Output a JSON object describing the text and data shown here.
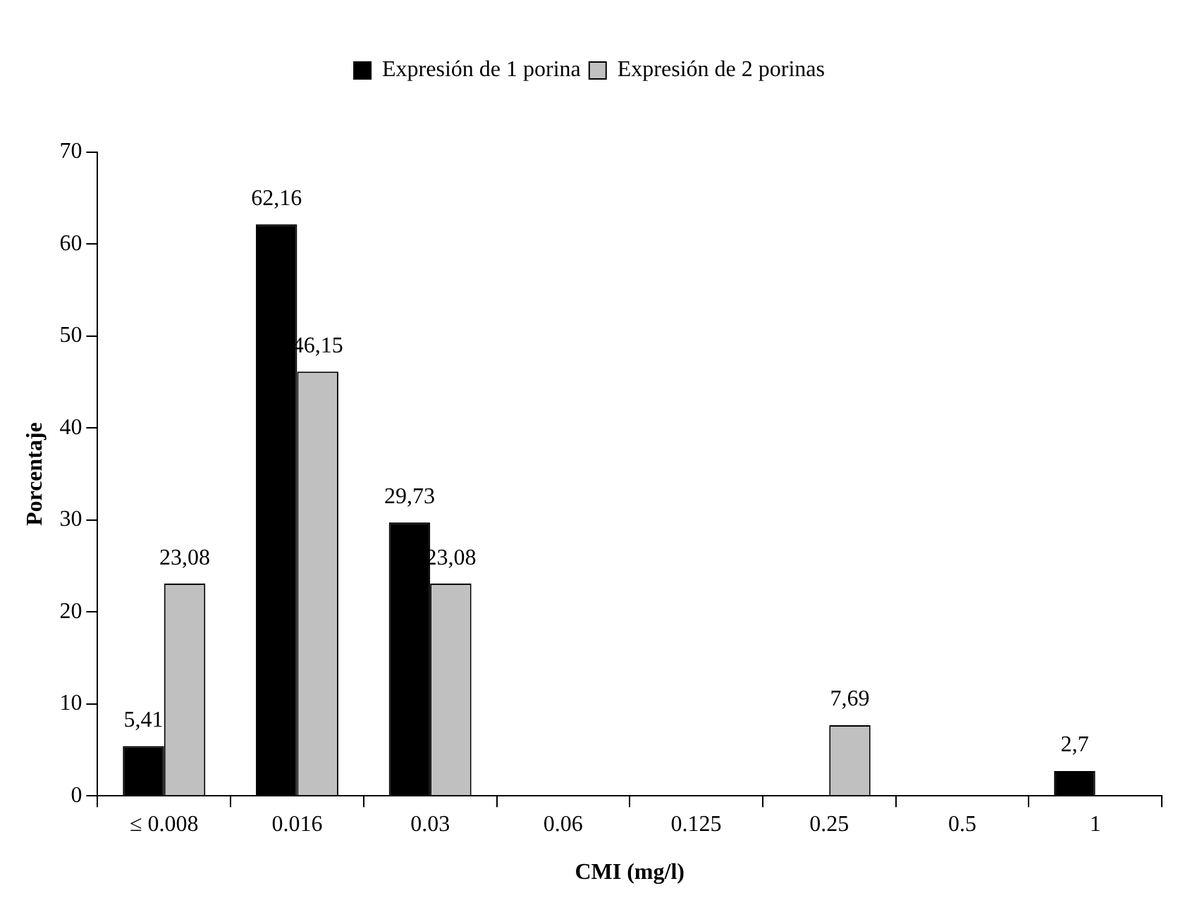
{
  "chart_data": {
    "type": "bar",
    "xlabel": "CMI (mg/l)",
    "ylabel": "Porcentaje",
    "categories": [
      "≤ 0.008",
      "0.016",
      "0.03",
      "0.06",
      "0.125",
      "0.25",
      "0.5",
      "1"
    ],
    "series": [
      {
        "name": "Expresión de 1 porina",
        "color": "#000000",
        "values": [
          5.41,
          62.16,
          29.73,
          0,
          0,
          0,
          0,
          2.7
        ],
        "value_labels": [
          "5,41",
          "62,16",
          "29,73",
          null,
          null,
          null,
          null,
          "2,7"
        ]
      },
      {
        "name": "Expresión de 2 porinas",
        "color": "#c0c0c0",
        "values": [
          23.08,
          46.15,
          23.08,
          0,
          0,
          7.69,
          0,
          0
        ],
        "value_labels": [
          "23,08",
          "46,15",
          "23,08",
          null,
          null,
          "7,69",
          null,
          null
        ]
      }
    ],
    "ylim": [
      0,
      70
    ],
    "yticks": [
      0,
      10,
      20,
      30,
      40,
      50,
      60,
      70
    ],
    "grid": false,
    "legend": "top"
  }
}
